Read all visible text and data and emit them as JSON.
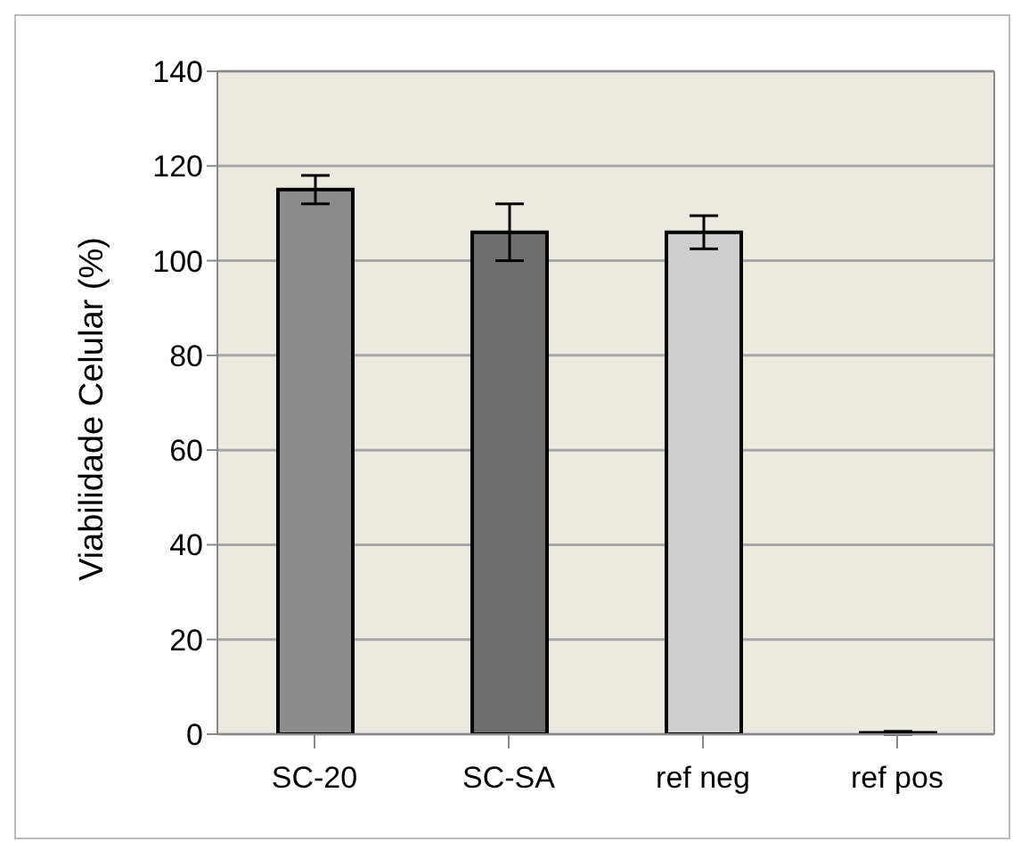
{
  "chart_data": {
    "type": "bar",
    "ylabel": "Viabilidade Celular (%)",
    "categories": [
      "SC-20",
      "SC-SA",
      "ref neg",
      "ref pos"
    ],
    "values": [
      115,
      106,
      106,
      0.3
    ],
    "errors": [
      3,
      6,
      3.5,
      0.3
    ],
    "colors": [
      "#8c8c8c",
      "#6e6e6e",
      "#cfcfcf",
      "#8c8c8c"
    ],
    "ylim": [
      0,
      140
    ],
    "yticks": [
      0,
      20,
      40,
      60,
      80,
      100,
      120,
      140
    ],
    "grid": "y",
    "legend": false
  }
}
